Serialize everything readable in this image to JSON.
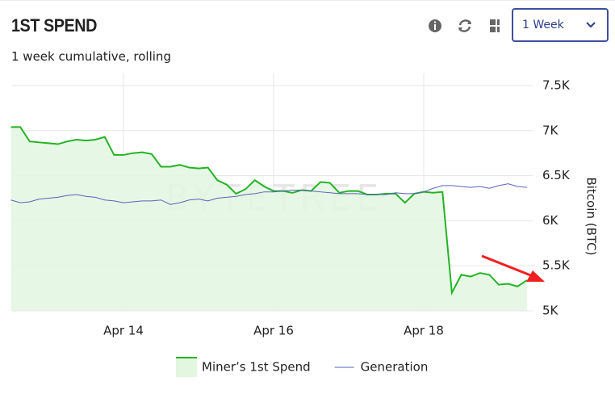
{
  "controls": {
    "range": "1 Week"
  },
  "chart_data": {
    "type": "line",
    "title": "1ST SPEND",
    "subtitle": "1 week cumulative, rolling",
    "watermark": "BYTETREE",
    "y_label": "Bitcoin (BTC)",
    "categories": [
      null,
      null,
      null,
      null,
      null,
      null,
      null,
      null,
      null,
      null,
      null,
      null,
      "Apr 14",
      null,
      null,
      null,
      null,
      null,
      null,
      null,
      null,
      null,
      null,
      null,
      null,
      null,
      null,
      null,
      "Apr 16",
      null,
      null,
      null,
      null,
      null,
      null,
      null,
      null,
      null,
      null,
      null,
      null,
      null,
      null,
      null,
      "Apr 18",
      null,
      null,
      null,
      null,
      null,
      null,
      null,
      null,
      null,
      null,
      null
    ],
    "series": [
      {
        "name": "Miner’s 1st Spend",
        "color": "#22b422",
        "fill": "#e3f6e0",
        "values": [
          7040,
          7040,
          6880,
          6870,
          6860,
          6850,
          6880,
          6900,
          6890,
          6900,
          6930,
          6730,
          6730,
          6750,
          6760,
          6740,
          6600,
          6600,
          6620,
          6590,
          6580,
          6590,
          6450,
          6400,
          6300,
          6350,
          6450,
          6380,
          6330,
          6330,
          6310,
          6340,
          6330,
          6430,
          6420,
          6310,
          6330,
          6330,
          6290,
          6290,
          6300,
          6300,
          6200,
          6300,
          6320,
          6310,
          6320,
          5200,
          5400,
          5380,
          5420,
          5400,
          5290,
          5300,
          5270,
          5340
        ]
      },
      {
        "name": "Generation",
        "color": "#5a62b8",
        "values": [
          6230,
          6200,
          6210,
          6240,
          6250,
          6260,
          6280,
          6290,
          6270,
          6260,
          6230,
          6220,
          6200,
          6210,
          6220,
          6220,
          6230,
          6180,
          6200,
          6230,
          6240,
          6220,
          6250,
          6260,
          6270,
          6290,
          6300,
          6320,
          6320,
          6330,
          6340,
          6340,
          6330,
          6320,
          6310,
          6300,
          6300,
          6300,
          6290,
          6290,
          6290,
          6310,
          6300,
          6300,
          6320,
          6360,
          6390,
          6390,
          6380,
          6370,
          6380,
          6360,
          6390,
          6410,
          6380,
          6370
        ]
      }
    ],
    "ylim": [
      5000,
      7500
    ],
    "yticks": [
      {
        "value": 5000,
        "label": "5K"
      },
      {
        "value": 5500,
        "label": "5.5K"
      },
      {
        "value": 6000,
        "label": "6K"
      },
      {
        "value": 6500,
        "label": "6.5K"
      },
      {
        "value": 7000,
        "label": "7K"
      },
      {
        "value": 7500,
        "label": "7.5K"
      }
    ],
    "grid": true
  }
}
